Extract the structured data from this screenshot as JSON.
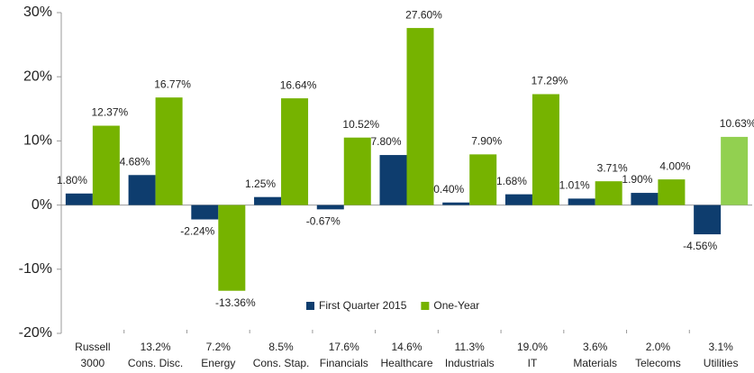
{
  "chart_data": {
    "type": "bar",
    "categories": [
      "Russell\n3000",
      "13.2%\nCons. Disc.",
      "7.2%\nEnergy",
      "8.5%\nCons. Stap.",
      "17.6%\nFinancials",
      "14.6%\nHealthcare",
      "11.3%\nIndustrials",
      "19.0%\nIT",
      "3.6%\nMaterials",
      "2.0%\nTelecoms",
      "3.1%\nUtilities"
    ],
    "series": [
      {
        "name": "First Quarter 2015",
        "color": "#0e3d6e",
        "values": [
          1.8,
          4.68,
          -2.24,
          1.25,
          -0.67,
          7.8,
          0.4,
          1.68,
          1.01,
          1.9,
          -4.56
        ],
        "value_labels": [
          "1.80%",
          "4.68%",
          "-2.24%",
          "1.25%",
          "-0.67%",
          "7.80%",
          "0.40%",
          "1.68%",
          "1.01%",
          "1.90%",
          "-4.56%"
        ]
      },
      {
        "name": "One-Year",
        "color": "#76b300",
        "colors": [
          "#76b300",
          "#76b300",
          "#76b300",
          "#76b300",
          "#76b300",
          "#76b300",
          "#76b300",
          "#76b300",
          "#76b300",
          "#76b300",
          "#92d050"
        ],
        "values": [
          12.37,
          16.77,
          -13.36,
          16.64,
          10.52,
          27.6,
          7.9,
          17.29,
          3.71,
          4.0,
          10.63
        ],
        "value_labels": [
          "12.37%",
          "16.77%",
          "-13.36%",
          "16.64%",
          "10.52%",
          "27.60%",
          "7.90%",
          "17.29%",
          "3.71%",
          "4.00%",
          "10.63%"
        ]
      }
    ],
    "ylim": [
      -20,
      30
    ],
    "yticks": [
      {
        "value": -20,
        "label": "-20%"
      },
      {
        "value": -10,
        "label": "-10%"
      },
      {
        "value": 0,
        "label": "0%"
      },
      {
        "value": 10,
        "label": "10%"
      },
      {
        "value": 20,
        "label": "20%"
      },
      {
        "value": 30,
        "label": "30%"
      }
    ]
  }
}
